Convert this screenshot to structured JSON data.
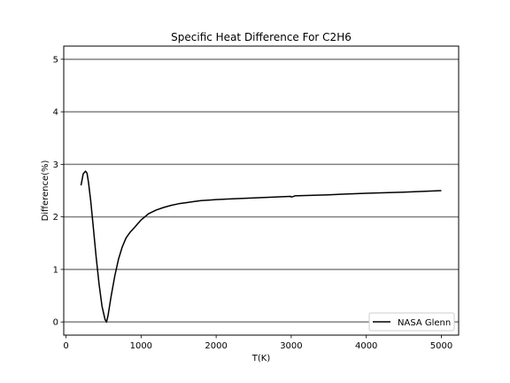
{
  "chart_data": {
    "type": "line",
    "title": "Specific Heat Difference For C2H6",
    "xlabel": "T(K)",
    "ylabel": "Difference(%)",
    "xlim": [
      -30,
      5230
    ],
    "ylim": [
      -0.25,
      5.25
    ],
    "xticks": [
      0,
      1000,
      2000,
      3000,
      4000,
      5000
    ],
    "yticks": [
      0,
      1,
      2,
      3,
      4,
      5
    ],
    "hlines": [
      0,
      1,
      2,
      3,
      4,
      5
    ],
    "grid": "horizontal lines",
    "legend_position": "lower right",
    "colors": {
      "line": "#000000",
      "hline": "#808080",
      "frame": "#000000",
      "background": "#ffffff"
    },
    "series": [
      {
        "name": "NASA Glenn",
        "x": [
          200,
          230,
          260,
          280,
          300,
          330,
          360,
          400,
          440,
          480,
          520,
          540,
          560,
          600,
          650,
          700,
          750,
          800,
          850,
          900,
          950,
          1000,
          1050,
          1100,
          1200,
          1300,
          1400,
          1500,
          1600,
          1700,
          1800,
          1900,
          2000,
          2500,
          2990,
          3000,
          3010,
          3050,
          3500,
          4000,
          4500,
          5000
        ],
        "y": [
          2.6,
          2.82,
          2.87,
          2.83,
          2.65,
          2.3,
          1.85,
          1.25,
          0.72,
          0.3,
          0.05,
          0.0,
          0.12,
          0.48,
          0.88,
          1.2,
          1.43,
          1.6,
          1.7,
          1.78,
          1.86,
          1.94,
          2.0,
          2.06,
          2.13,
          2.18,
          2.22,
          2.25,
          2.27,
          2.29,
          2.31,
          2.32,
          2.33,
          2.36,
          2.39,
          2.38,
          2.38,
          2.4,
          2.42,
          2.45,
          2.47,
          2.5
        ]
      }
    ]
  }
}
